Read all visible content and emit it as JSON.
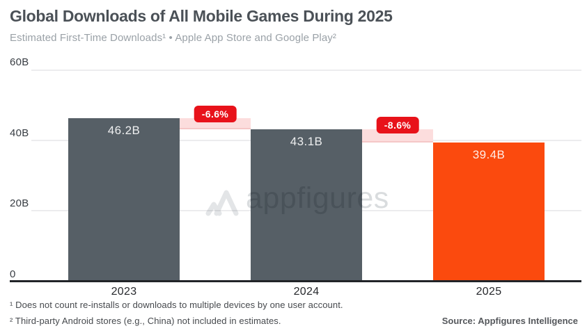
{
  "header": {
    "title": "Global Downloads of All Mobile Games During 2025",
    "subtitle": "Estimated First-Time Downloads¹ • Apple App Store and Google Play²"
  },
  "chart_data": {
    "type": "bar",
    "categories": [
      "2023",
      "2024",
      "2025"
    ],
    "values": [
      46.2,
      43.1,
      39.4
    ],
    "unit": "billions of downloads",
    "value_labels": [
      "46.2B",
      "43.1B",
      "39.4B"
    ],
    "pct_change_badges": [
      "-6.6%",
      "-8.6%"
    ],
    "yticks": [
      "60B",
      "40B",
      "20B",
      "0"
    ],
    "ylim": [
      0,
      60
    ],
    "grid": "horizontal",
    "bar_colors": [
      "#565F66",
      "#565F66",
      "#FB4A0E"
    ],
    "badge_color": "#E8121A",
    "band_color": "#FCDDDD",
    "title": "Global Downloads of All Mobile Games During 2025",
    "xlabel": "",
    "ylabel": ""
  },
  "watermark": {
    "text": "appfigures"
  },
  "footnotes": [
    "¹ Does not count re-installs or downloads to multiple devices by one user account.",
    "² Third-party Android stores (e.g., China) not included in estimates."
  ],
  "source": "Source: Appfigures Intelligence"
}
